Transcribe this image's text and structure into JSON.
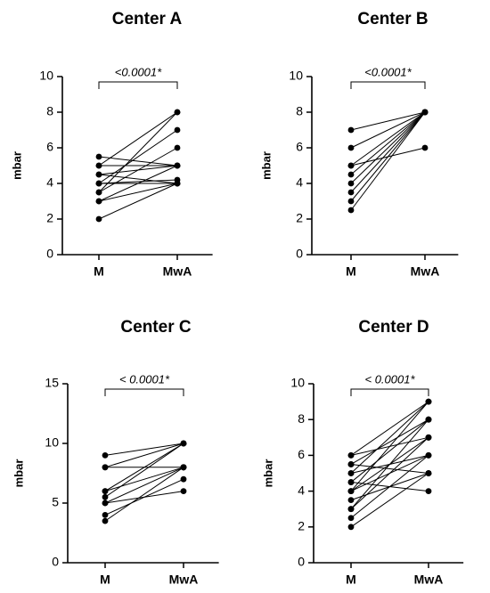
{
  "chart_data": [
    {
      "type": "line",
      "title": "Center A",
      "ylabel": "mbar",
      "categories": [
        "M",
        "MwA"
      ],
      "ylim": [
        0,
        10
      ],
      "yticks": [
        "0",
        "2",
        "4",
        "6",
        "8",
        "10"
      ],
      "significance": "<0.0001*",
      "pairs": [
        [
          2,
          4
        ],
        [
          3,
          4
        ],
        [
          3,
          5
        ],
        [
          3.5,
          8
        ],
        [
          3.5,
          6
        ],
        [
          4,
          4
        ],
        [
          4,
          4.2
        ],
        [
          4,
          7
        ],
        [
          4.5,
          5
        ],
        [
          4.5,
          4
        ],
        [
          5,
          5
        ],
        [
          5,
          8
        ],
        [
          5.5,
          5
        ]
      ]
    },
    {
      "type": "line",
      "title": "Center B",
      "ylabel": "mbar",
      "categories": [
        "M",
        "MwA"
      ],
      "ylim": [
        0,
        10
      ],
      "yticks": [
        "0",
        "2",
        "4",
        "6",
        "8",
        "10"
      ],
      "significance": "<0.0001*",
      "pairs": [
        [
          2.5,
          8
        ],
        [
          3,
          8
        ],
        [
          3.5,
          8
        ],
        [
          4,
          8
        ],
        [
          4.5,
          8
        ],
        [
          5,
          6
        ],
        [
          5,
          8
        ],
        [
          6,
          8
        ],
        [
          7,
          8
        ]
      ]
    },
    {
      "type": "line",
      "title": "Center C",
      "ylabel": "mbar",
      "categories": [
        "M",
        "MwA"
      ],
      "ylim": [
        0,
        15
      ],
      "yticks": [
        "0",
        "5",
        "10",
        "15"
      ],
      "significance": "< 0.0001*",
      "pairs": [
        [
          3.5,
          8
        ],
        [
          4,
          7
        ],
        [
          5,
          8
        ],
        [
          5,
          6
        ],
        [
          5.5,
          10
        ],
        [
          6,
          8
        ],
        [
          6,
          10
        ],
        [
          8,
          8
        ],
        [
          8,
          10
        ],
        [
          9,
          10
        ]
      ]
    },
    {
      "type": "line",
      "title": "Center D",
      "ylabel": "mbar",
      "categories": [
        "M",
        "MwA"
      ],
      "ylim": [
        0,
        10
      ],
      "yticks": [
        "0",
        "2",
        "4",
        "6",
        "8",
        "10"
      ],
      "significance": "< 0.0001*",
      "pairs": [
        [
          2,
          5
        ],
        [
          2.5,
          6
        ],
        [
          3,
          7
        ],
        [
          3,
          8
        ],
        [
          3.5,
          5
        ],
        [
          4,
          6
        ],
        [
          4,
          9
        ],
        [
          4,
          7
        ],
        [
          4.5,
          4
        ],
        [
          4.5,
          8
        ],
        [
          5,
          9
        ],
        [
          5,
          6
        ],
        [
          5.5,
          5
        ],
        [
          5.5,
          8
        ],
        [
          6,
          9
        ],
        [
          6,
          7
        ]
      ]
    }
  ]
}
